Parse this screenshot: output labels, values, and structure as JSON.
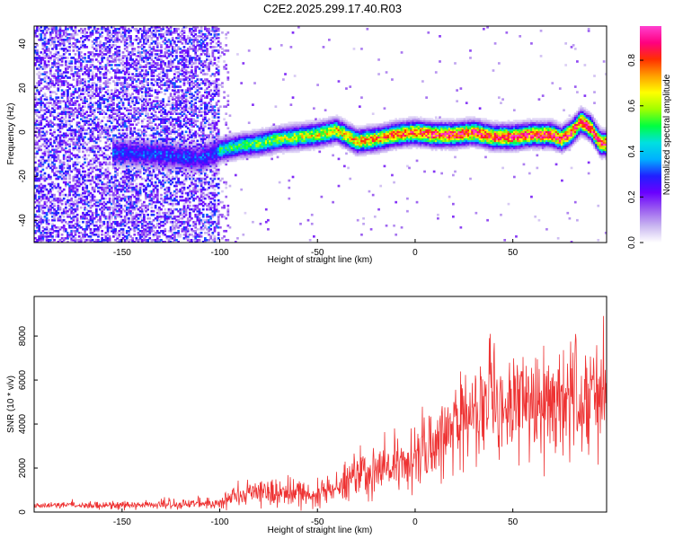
{
  "title": "C2E2.2025.299.17.40.R03",
  "chart_data": [
    {
      "type": "heatmap",
      "name": "spectrogram",
      "xlabel": "Height of straight line (km)",
      "ylabel": "Frequency (Hz)",
      "xlim": [
        -195,
        98
      ],
      "ylim": [
        -50,
        48
      ],
      "xticks": [
        -150,
        -100,
        -50,
        0,
        50
      ],
      "yticks": [
        -40,
        -20,
        0,
        20,
        40
      ],
      "ridge": {
        "description": "dominant frequency track (Hz) vs height (km)",
        "x": [
          -150,
          -130,
          -110,
          -100,
          -90,
          -80,
          -70,
          -60,
          -50,
          -40,
          -30,
          -20,
          -10,
          0,
          10,
          20,
          30,
          40,
          50,
          60,
          70,
          75,
          80,
          85,
          90,
          95
        ],
        "y": [
          -9,
          -10,
          -12,
          -8,
          -6,
          -5,
          -3,
          -2,
          -1,
          1,
          -4,
          -3,
          -1,
          0,
          -1,
          -1,
          0,
          -2,
          -2,
          -1,
          -1,
          -3,
          0,
          5,
          2,
          -5
        ]
      },
      "noise_region_x": [
        -195,
        -100
      ],
      "colorbar": {
        "label": "Normalized spectral amplitude",
        "range": [
          0.0,
          0.95
        ],
        "ticks": [
          0.0,
          0.2,
          0.4,
          0.6,
          0.8
        ],
        "tick_labels": [
          "0.0",
          "0.2",
          "0.4",
          "0.6",
          "0.8"
        ],
        "colors": [
          "#ffffff",
          "#c9b6f0",
          "#9a5cf0",
          "#6a00ff",
          "#2020ff",
          "#00b0ff",
          "#00e0e0",
          "#00ff40",
          "#a0ff00",
          "#ffff00",
          "#ffa000",
          "#ff3000",
          "#ff0080",
          "#ff40d0"
        ]
      }
    },
    {
      "type": "line",
      "name": "snr",
      "xlabel": "Height of straight line (km)",
      "ylabel": "SNR (10 * v/v)",
      "xlim": [
        -195,
        98
      ],
      "ylim": [
        0,
        9800
      ],
      "xticks": [
        -150,
        -100,
        -50,
        0,
        50
      ],
      "yticks": [
        0,
        2000,
        4000,
        6000,
        8000
      ],
      "color": "#ee3333",
      "envelope": {
        "description": "approximate mean SNR and noise amplitude vs height",
        "x": [
          -195,
          -150,
          -100,
          -92,
          -80,
          -60,
          -50,
          -40,
          -30,
          -20,
          -10,
          0,
          10,
          20,
          30,
          40,
          50,
          60,
          70,
          80,
          90,
          98
        ],
        "mean": [
          280,
          330,
          380,
          700,
          900,
          850,
          750,
          1200,
          1700,
          1900,
          2100,
          2500,
          3000,
          3800,
          4500,
          5000,
          5000,
          4800,
          4800,
          4900,
          5000,
          5000
        ],
        "amplitude": [
          120,
          150,
          200,
          450,
          550,
          500,
          450,
          700,
          1000,
          900,
          900,
          1000,
          1300,
          1600,
          2000,
          2300,
          1900,
          1800,
          2000,
          2300,
          2200,
          2000
        ]
      }
    }
  ]
}
